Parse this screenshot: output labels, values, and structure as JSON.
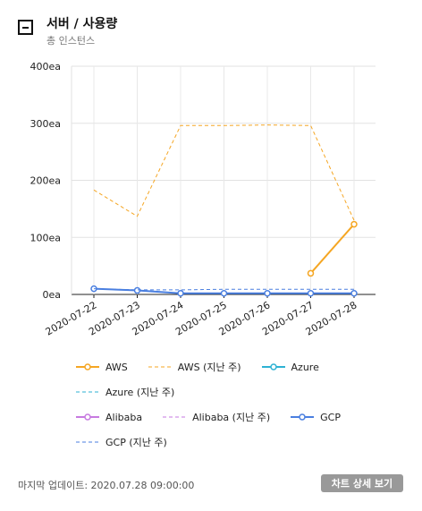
{
  "widget": {
    "title": "서버 / 사용량",
    "subtitle": "총 인스턴스",
    "footer": {
      "updated_label": "마지막 업데이트: 2020.07.28 09:00:00",
      "detail_button": "차트 상세 보기"
    }
  },
  "chart_data": {
    "type": "line",
    "x": [
      "2020-07-22",
      "2020-07-23",
      "2020-07-24",
      "2020-07-25",
      "2020-07-26",
      "2020-07-27",
      "2020-07-28"
    ],
    "y_ticks": [
      "0ea",
      "100ea",
      "200ea",
      "300ea",
      "400ea"
    ],
    "ylim": [
      0,
      400
    ],
    "grid": true,
    "legend_position": "bottom",
    "series": [
      {
        "name": "AWS",
        "color": "#f5a623",
        "style": "solid",
        "markers": true,
        "values": [
          null,
          null,
          null,
          null,
          null,
          37,
          123
        ]
      },
      {
        "name": "AWS (지난 주)",
        "color": "#f5a623",
        "style": "dashed",
        "markers": false,
        "values": [
          183,
          137,
          296,
          296,
          297,
          296,
          130
        ]
      },
      {
        "name": "Azure",
        "color": "#2eb2d3",
        "style": "solid",
        "markers": true,
        "values": [
          null,
          null,
          null,
          null,
          null,
          null,
          null
        ]
      },
      {
        "name": "Azure (지난 주)",
        "color": "#2eb2d3",
        "style": "dashed",
        "markers": false,
        "values": [
          null,
          null,
          null,
          null,
          null,
          null,
          null
        ]
      },
      {
        "name": "Alibaba",
        "color": "#c77ae0",
        "style": "solid",
        "markers": true,
        "values": [
          null,
          null,
          null,
          null,
          null,
          null,
          null
        ]
      },
      {
        "name": "Alibaba (지난 주)",
        "color": "#c77ae0",
        "style": "dashed",
        "markers": false,
        "values": [
          null,
          null,
          null,
          null,
          null,
          null,
          null
        ]
      },
      {
        "name": "GCP",
        "color": "#4a7fe0",
        "style": "solid",
        "markers": true,
        "values": [
          10,
          7,
          2,
          2,
          2,
          2,
          2
        ]
      },
      {
        "name": "GCP (지난 주)",
        "color": "#4a7fe0",
        "style": "dashed",
        "markers": false,
        "values": [
          10,
          8,
          8,
          9,
          9,
          9,
          9
        ]
      }
    ]
  }
}
